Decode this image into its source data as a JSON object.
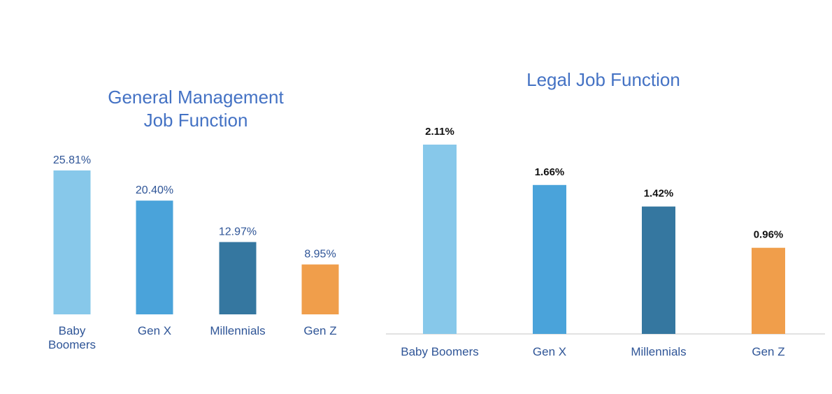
{
  "chart_data": [
    {
      "type": "bar",
      "title": [
        "General Management",
        "Job Function"
      ],
      "categories": [
        [
          "Baby",
          "Boomers"
        ],
        [
          "Gen X"
        ],
        [
          "Millennials"
        ],
        [
          "Gen Z"
        ]
      ],
      "values": [
        25.81,
        20.4,
        12.97,
        8.95
      ],
      "value_labels": [
        "25.81%",
        "20.40%",
        "12.97%",
        "8.95%"
      ],
      "colors": [
        "#87c8ea",
        "#4aa3da",
        "#3577a0",
        "#f09e4b"
      ],
      "ylim": [
        0,
        25.81
      ],
      "grid": false,
      "axis_line": false
    },
    {
      "type": "bar",
      "title": [
        "Legal Job Function"
      ],
      "categories": [
        [
          "Baby Boomers"
        ],
        [
          "Gen X"
        ],
        [
          "Millennials"
        ],
        [
          "Gen Z"
        ]
      ],
      "values": [
        2.11,
        1.66,
        1.42,
        0.96
      ],
      "value_labels": [
        "2.11%",
        "1.66%",
        "1.42%",
        "0.96%"
      ],
      "colors": [
        "#87c8ea",
        "#4aa3da",
        "#3577a0",
        "#f09e4b"
      ],
      "ylim": [
        0,
        2.11
      ],
      "grid": false,
      "axis_line": true
    }
  ]
}
